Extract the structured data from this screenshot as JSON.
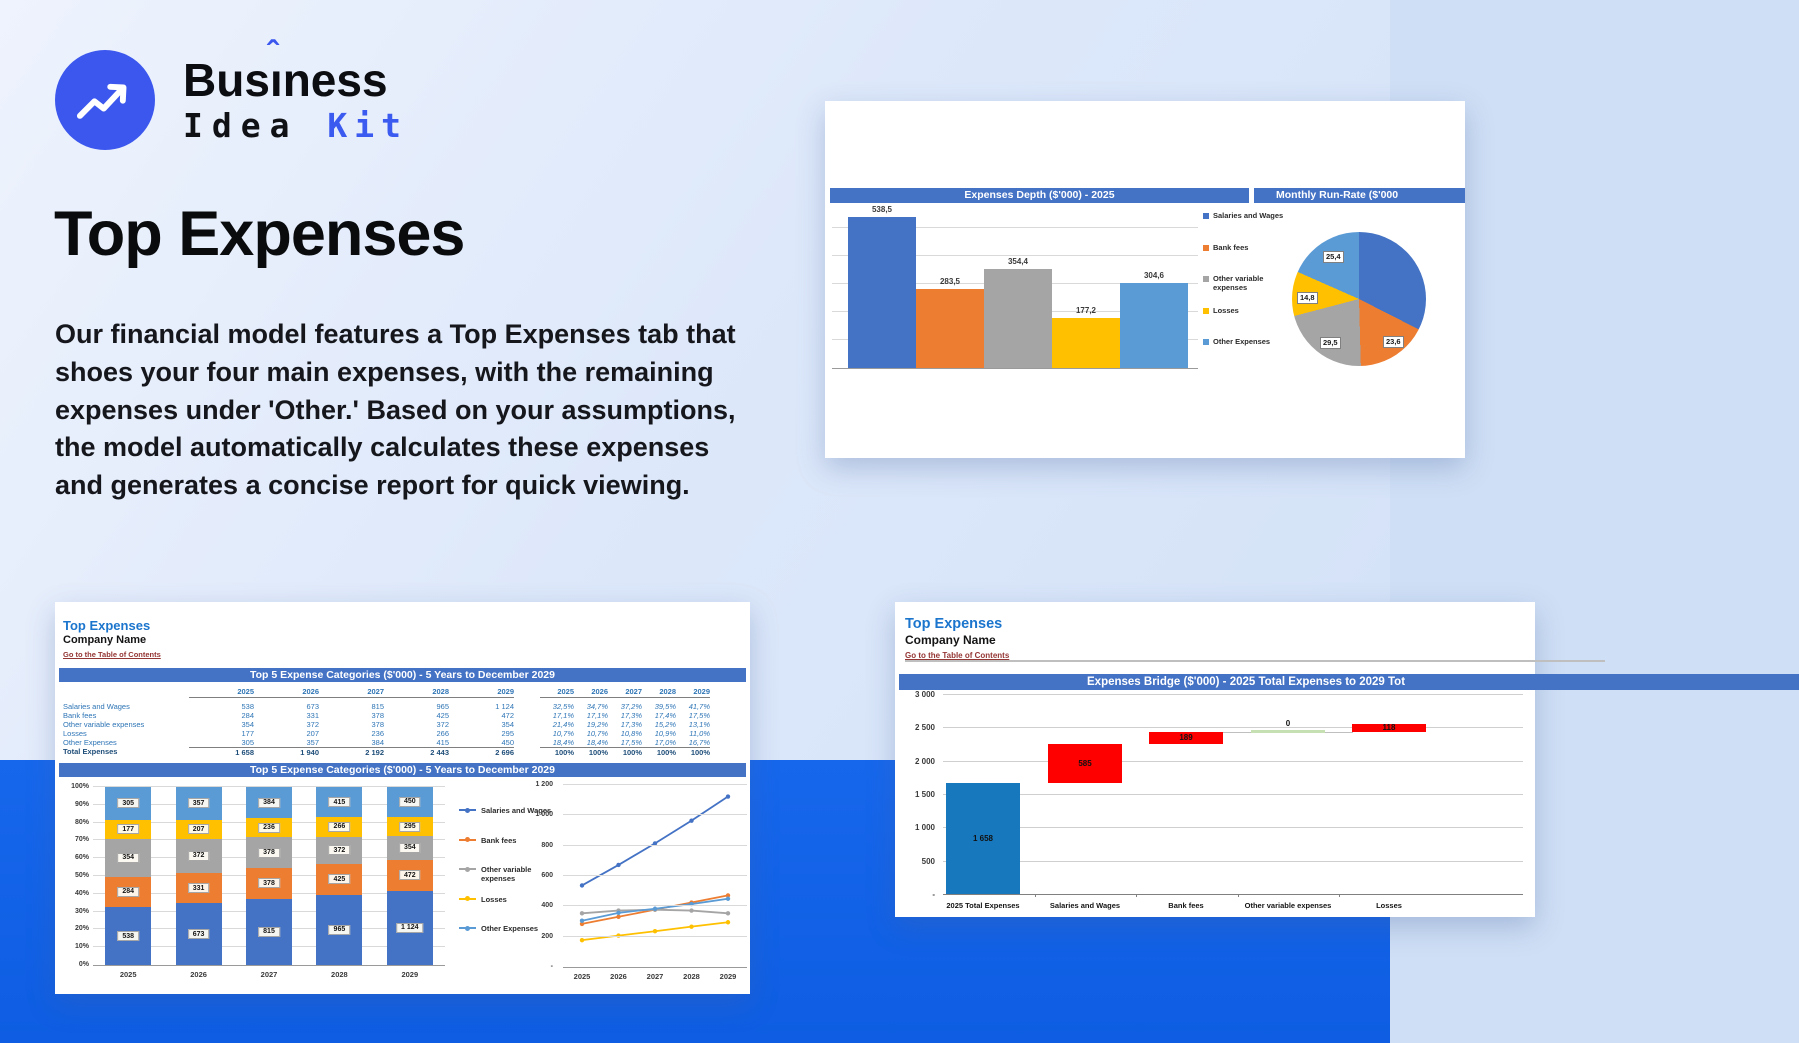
{
  "brand": {
    "name_part1": "Bus",
    "name_accent_letter": "ı",
    "name_circumflex": "ˆ",
    "name_part2": "ness",
    "line2_word1": "Idea",
    "line2_word2": "Kit",
    "logo_icon": "trending-up-arrow",
    "accent_color": "#3b57ee"
  },
  "hero": {
    "title": "Top Expenses",
    "description": "Our financial model features a Top Expenses tab that shoes your four main expenses, with the remaining expenses under 'Other.' Based on your assumptions, the model automatically calculates these expenses and generates a concise report for quick viewing."
  },
  "series": {
    "names": [
      "Salaries and Wages",
      "Bank fees",
      "Other variable expenses",
      "Losses",
      "Other Expenses"
    ],
    "colors": [
      "#4472c4",
      "#ed7d31",
      "#a5a5a5",
      "#ffc000",
      "#5b9bd5"
    ]
  },
  "sheet": {
    "title": "Top Expenses",
    "company": "Company Name",
    "link": "Go to the Table of Contents"
  },
  "table": {
    "header": "Top 5 Expense Categories ($'000) - 5 Years to December 2029",
    "years": [
      "2025",
      "2026",
      "2027",
      "2028",
      "2029"
    ],
    "rows": [
      {
        "label": "Salaries and Wages",
        "values": [
          "538",
          "673",
          "815",
          "965",
          "1 124"
        ],
        "pcts": [
          "32,5%",
          "34,7%",
          "37,2%",
          "39,5%",
          "41,7%"
        ]
      },
      {
        "label": "Bank fees",
        "values": [
          "284",
          "331",
          "378",
          "425",
          "472"
        ],
        "pcts": [
          "17,1%",
          "17,1%",
          "17,3%",
          "17,4%",
          "17,5%"
        ]
      },
      {
        "label": "Other variable expenses",
        "values": [
          "354",
          "372",
          "378",
          "372",
          "354"
        ],
        "pcts": [
          "21,4%",
          "19,2%",
          "17,3%",
          "15,2%",
          "13,1%"
        ]
      },
      {
        "label": "Losses",
        "values": [
          "177",
          "207",
          "236",
          "266",
          "295"
        ],
        "pcts": [
          "10,7%",
          "10,7%",
          "10,8%",
          "10,9%",
          "11,0%"
        ]
      },
      {
        "label": "Other Expenses",
        "values": [
          "305",
          "357",
          "384",
          "415",
          "450"
        ],
        "pcts": [
          "18,4%",
          "18,4%",
          "17,5%",
          "17,0%",
          "16,7%"
        ]
      }
    ],
    "total": {
      "label": "Total Expenses",
      "values": [
        "1 658",
        "1 940",
        "2 192",
        "2 443",
        "2 696"
      ],
      "pcts": [
        "100%",
        "100%",
        "100%",
        "100%",
        "100%"
      ]
    }
  },
  "chart_data": [
    {
      "id": "expenses_depth",
      "type": "bar",
      "title": "Expenses Depth ($'000) - 2025",
      "categories": [
        "Salaries and Wages",
        "Bank fees",
        "Other variable expenses",
        "Losses",
        "Other Expenses"
      ],
      "values": [
        538.5,
        283.5,
        354.4,
        177.2,
        304.6
      ],
      "value_labels": [
        "538,5",
        "283,5",
        "354,4",
        "177,2",
        "304,6"
      ],
      "ylim": [
        0,
        580
      ],
      "grid_step": 100,
      "legend_position": "right"
    },
    {
      "id": "monthly_run_rate",
      "type": "pie",
      "title": "Monthly Run-Rate ($'000",
      "categories": [
        "Salaries and Wages",
        "Bank fees",
        "Other variable expenses",
        "Losses",
        "Other Expenses"
      ],
      "values": [
        44.9,
        23.6,
        29.5,
        14.8,
        25.4
      ],
      "slice_labels": [
        "",
        "23,6",
        "29,5",
        "14,8",
        "25,4"
      ]
    },
    {
      "id": "top5_stacked",
      "type": "bar",
      "subtype": "stacked-100pct",
      "title": "Top 5 Expense Categories ($'000) - 5 Years to December 2029",
      "categories": [
        "2025",
        "2026",
        "2027",
        "2028",
        "2029"
      ],
      "series": [
        {
          "name": "Salaries and Wages",
          "values": [
            538,
            673,
            815,
            965,
            1124
          ],
          "labels": [
            "538",
            "673",
            "815",
            "965",
            "1 124"
          ]
        },
        {
          "name": "Bank fees",
          "values": [
            284,
            331,
            378,
            425,
            472
          ],
          "labels": [
            "284",
            "331",
            "378",
            "425",
            "472"
          ]
        },
        {
          "name": "Other variable expenses",
          "values": [
            354,
            372,
            378,
            372,
            354
          ],
          "labels": [
            "354",
            "372",
            "378",
            "372",
            "354"
          ]
        },
        {
          "name": "Losses",
          "values": [
            177,
            207,
            236,
            266,
            295
          ],
          "labels": [
            "177",
            "207",
            "236",
            "266",
            "295"
          ]
        },
        {
          "name": "Other Expenses",
          "values": [
            305,
            357,
            384,
            415,
            450
          ],
          "labels": [
            "305",
            "357",
            "384",
            "415",
            "450"
          ]
        }
      ],
      "totals": [
        1658,
        1940,
        2192,
        2443,
        2696
      ],
      "yticks": [
        "0%",
        "10%",
        "20%",
        "30%",
        "40%",
        "50%",
        "60%",
        "70%",
        "80%",
        "90%",
        "100%"
      ],
      "legend_position": "right"
    },
    {
      "id": "top5_lines",
      "type": "line",
      "x": [
        "2025",
        "2026",
        "2027",
        "2028",
        "2029"
      ],
      "series": [
        {
          "name": "Salaries and Wages",
          "values": [
            538,
            673,
            815,
            965,
            1124
          ]
        },
        {
          "name": "Bank fees",
          "values": [
            284,
            331,
            378,
            425,
            472
          ]
        },
        {
          "name": "Other variable expenses",
          "values": [
            354,
            372,
            378,
            372,
            354
          ]
        },
        {
          "name": "Losses",
          "values": [
            177,
            207,
            236,
            266,
            295
          ]
        },
        {
          "name": "Other Expenses",
          "values": [
            305,
            357,
            384,
            415,
            450
          ]
        }
      ],
      "yticks": [
        "-",
        "200",
        "400",
        "600",
        "800",
        "1 000",
        "1 200"
      ],
      "ylim": [
        0,
        1200
      ]
    },
    {
      "id": "expenses_bridge",
      "type": "bar",
      "subtype": "waterfall",
      "title": "Expenses Bridge ($'000) - 2025 Total Expenses to 2029 Tot",
      "categories": [
        "2025 Total Expenses",
        "Salaries and Wages",
        "Bank fees",
        "Other variable expenses",
        "Losses"
      ],
      "values": [
        1658,
        585,
        189,
        0,
        118
      ],
      "bar_labels": [
        "1 658",
        "585",
        "189",
        "0",
        "118"
      ],
      "bar_types": [
        "base",
        "increase",
        "increase",
        "zero",
        "increase"
      ],
      "bar_colors": {
        "base": "#1878bd",
        "increase": "#fe0000",
        "zero": "#c6e0b4"
      },
      "yticks": [
        "-",
        "500",
        "1 000",
        "1 500",
        "2 000",
        "2 500",
        "3 000"
      ],
      "ylim": [
        0,
        3000
      ]
    }
  ]
}
